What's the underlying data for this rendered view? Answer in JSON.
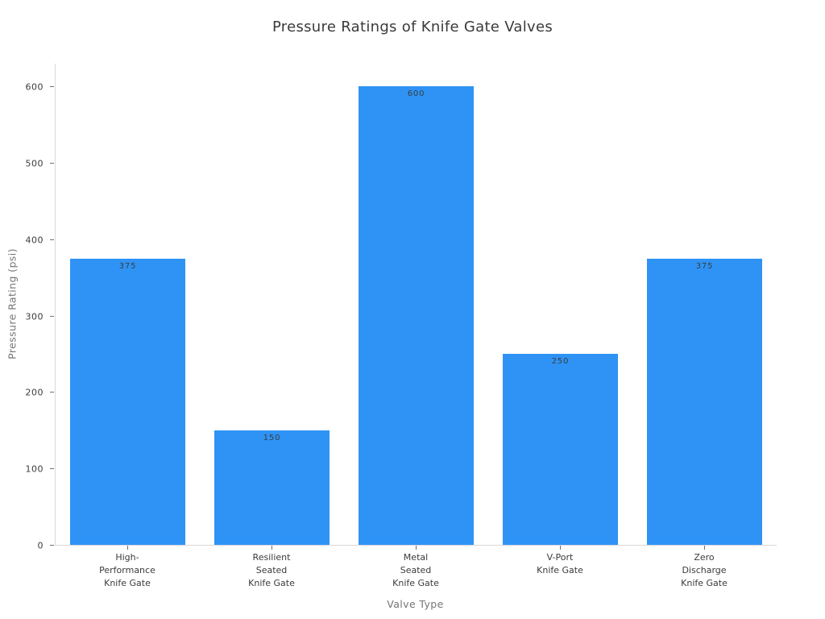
{
  "chart_data": {
    "type": "bar",
    "title": "Pressure Ratings of Knife Gate Valves",
    "xlabel": "Valve Type",
    "ylabel": "Pressure Rating (psi)",
    "categories": [
      "High-Performance Knife Gate",
      "Resilient Seated Knife Gate",
      "Metal Seated Knife Gate",
      "V-Port Knife Gate",
      "Zero Discharge Knife Gate"
    ],
    "category_tick_lines": [
      [
        "High-",
        "Performance",
        "Knife Gate"
      ],
      [
        "Resilient",
        "Seated",
        "Knife Gate"
      ],
      [
        "Metal",
        "Seated",
        "Knife Gate"
      ],
      [
        "V-Port",
        "Knife Gate"
      ],
      [
        "Zero",
        "Discharge",
        "Knife Gate"
      ]
    ],
    "values": [
      375,
      150,
      600,
      250,
      375
    ],
    "bar_labels": [
      "375",
      "150",
      "600",
      "250",
      "375"
    ],
    "yticks": [
      0,
      100,
      200,
      300,
      400,
      500,
      600
    ],
    "ylim": [
      0,
      630
    ],
    "grid": false,
    "legend": null,
    "colors": {
      "bar": "#2E93F5",
      "axis_line": "#d9d9d9",
      "tick_mark": "#707070",
      "tick_label": "#3b3b3b",
      "axis_title": "#757575",
      "title": "#3a3a3a",
      "bar_value_label": "#3d3d3d",
      "background": "#ffffff"
    }
  }
}
